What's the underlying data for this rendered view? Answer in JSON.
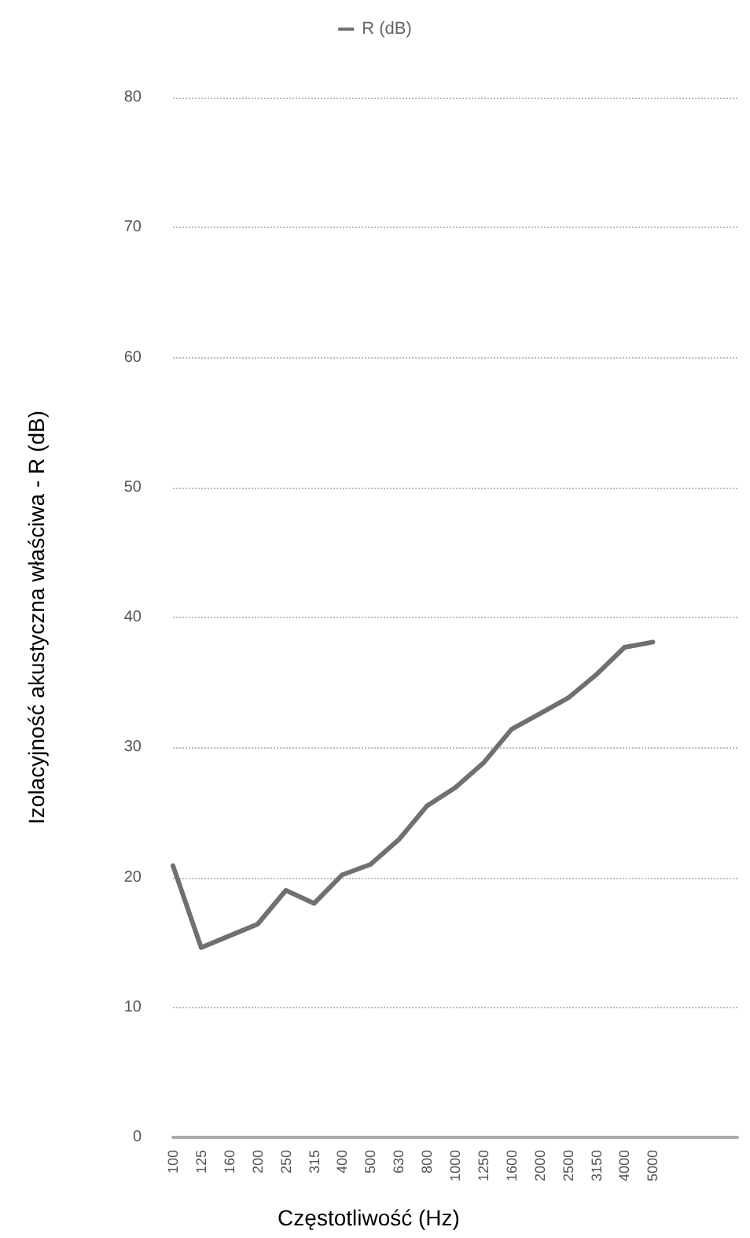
{
  "chart_data": {
    "type": "line",
    "xlabel": "Częstotliwość (Hz)",
    "ylabel": "Izolacyjność akustyczna właściwa - R (dB)",
    "categories": [
      "100",
      "125",
      "160",
      "200",
      "250",
      "315",
      "400",
      "500",
      "630",
      "800",
      "1000",
      "1250",
      "1600",
      "2000",
      "2500",
      "3150",
      "4000",
      "5000",
      null,
      null,
      null
    ],
    "series": [
      {
        "name": "R (dB)",
        "color": "#707070",
        "values": [
          20.9,
          14.6,
          15.5,
          16.4,
          19.0,
          18.0,
          20.2,
          21.0,
          22.9,
          25.5,
          26.9,
          28.8,
          31.4,
          32.6,
          33.8,
          35.6,
          37.7,
          38.1,
          null,
          null,
          null
        ]
      }
    ],
    "ylim": [
      0,
      80
    ],
    "yticks": [
      0,
      10,
      20,
      30,
      40,
      50,
      60,
      70,
      80
    ],
    "grid": "y",
    "legend": "top",
    "marker": "none",
    "line_style": "solid"
  }
}
